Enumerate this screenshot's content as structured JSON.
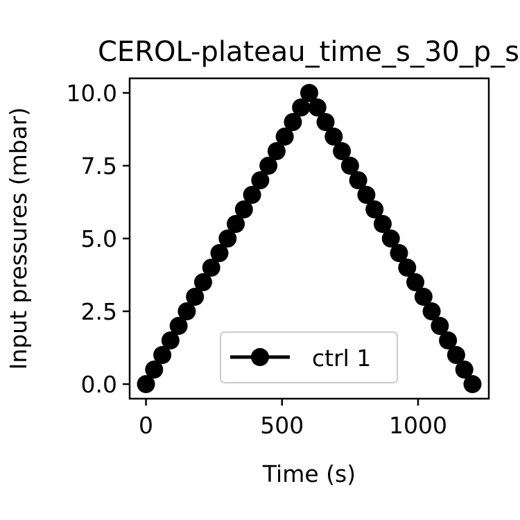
{
  "chart_data": {
    "type": "line",
    "title": "CEROL-plateau_time_s_30_p_s",
    "xlabel": "Time (s)",
    "ylabel": "Input pressures (mbar)",
    "xlim": [
      -60,
      1260
    ],
    "ylim": [
      -0.5,
      10.5
    ],
    "xticks": [
      0,
      500,
      1000
    ],
    "xtick_labels": [
      "0",
      "500",
      "1000"
    ],
    "yticks": [
      0.0,
      2.5,
      5.0,
      7.5,
      10.0
    ],
    "ytick_labels": [
      "0.0",
      "2.5",
      "5.0",
      "7.5",
      "10.0"
    ],
    "grid": false,
    "legend_position": "lower-center",
    "series": [
      {
        "name": "ctrl 1",
        "color": "#000000",
        "marker": "circle",
        "x": [
          0,
          30,
          60,
          90,
          120,
          150,
          180,
          210,
          240,
          270,
          300,
          330,
          360,
          390,
          420,
          450,
          480,
          510,
          540,
          570,
          600,
          630,
          660,
          690,
          720,
          750,
          780,
          810,
          840,
          870,
          900,
          930,
          960,
          990,
          1020,
          1050,
          1080,
          1110,
          1140,
          1170,
          1200
        ],
        "y": [
          0.0,
          0.5,
          1.0,
          1.5,
          2.0,
          2.5,
          3.0,
          3.5,
          4.0,
          4.5,
          5.0,
          5.5,
          6.0,
          6.5,
          7.0,
          7.5,
          8.0,
          8.5,
          9.0,
          9.5,
          10.0,
          9.5,
          9.0,
          8.5,
          8.0,
          7.5,
          7.0,
          6.5,
          6.0,
          5.5,
          5.0,
          4.5,
          4.0,
          3.5,
          3.0,
          2.5,
          2.0,
          1.5,
          1.0,
          0.5,
          0.0
        ]
      }
    ]
  }
}
